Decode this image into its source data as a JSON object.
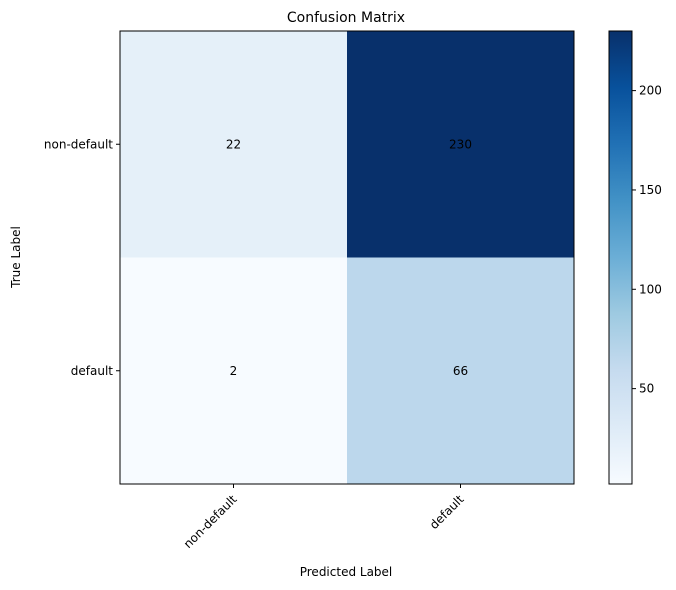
{
  "chart_data": {
    "type": "heatmap",
    "title": "Confusion Matrix",
    "xlabel": "Predicted Label",
    "ylabel": "True Label",
    "x_categories": [
      "non-default",
      "default"
    ],
    "y_categories": [
      "non-default",
      "default"
    ],
    "values": [
      [
        22,
        230
      ],
      [
        2,
        66
      ]
    ],
    "colormap": "Blues",
    "color_range": [
      2,
      230
    ],
    "colorbar_ticks": [
      50,
      100,
      150,
      200
    ],
    "grid": false
  }
}
